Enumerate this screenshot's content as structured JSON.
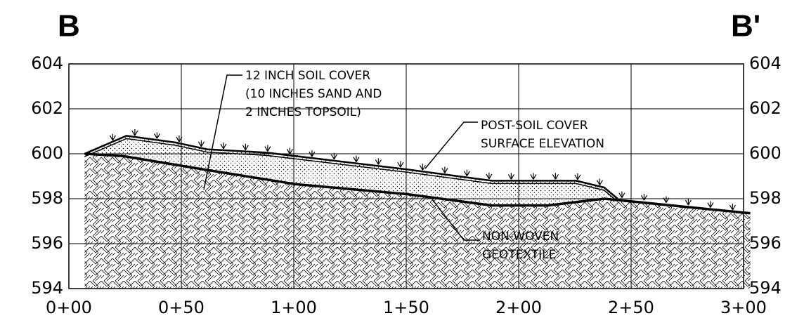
{
  "chart_data": {
    "type": "line",
    "title": "B",
    "title_right": "B'",
    "annotations": [
      "12 INCH SOIL COVER",
      "(10 INCHES SAND AND",
      "2 INCHES TOPSOIL)",
      "POST-SOIL COVER",
      "SURFACE ELEVATION",
      "NON-WOVEN",
      "GEOTEXTILE"
    ],
    "series": [
      {
        "color": "#000000",
        "x": [
          7,
          24,
          60,
          100.6,
          150.6,
          188,
          213,
          238,
          303
        ],
        "values": [
          600.0,
          599.9,
          599.3,
          598.65,
          598.2,
          597.7,
          597.7,
          598.0,
          597.35
        ]
      },
      {
        "color": "#000000",
        "x": [
          7,
          25.6,
          47.5,
          61.5,
          88,
          150.6,
          188,
          225.6,
          238,
          244
        ],
        "values": [
          600.0,
          600.8,
          600.5,
          600.2,
          600.05,
          599.3,
          598.8,
          598.8,
          598.5,
          598.0
        ]
      }
    ],
    "xlim": [
      0,
      300
    ],
    "xticks": [
      {
        "value": 0,
        "label": "0+00"
      },
      {
        "value": 50,
        "label": "0+50"
      },
      {
        "value": 100,
        "label": "1+00"
      },
      {
        "value": 150,
        "label": "1+50"
      },
      {
        "value": 200,
        "label": "2+00"
      },
      {
        "value": 250,
        "label": "2+50"
      },
      {
        "value": 300,
        "label": "3+00"
      }
    ],
    "ylim": [
      594,
      604
    ],
    "yticks": [
      594,
      596,
      598,
      600,
      602,
      604
    ],
    "grid": true
  }
}
